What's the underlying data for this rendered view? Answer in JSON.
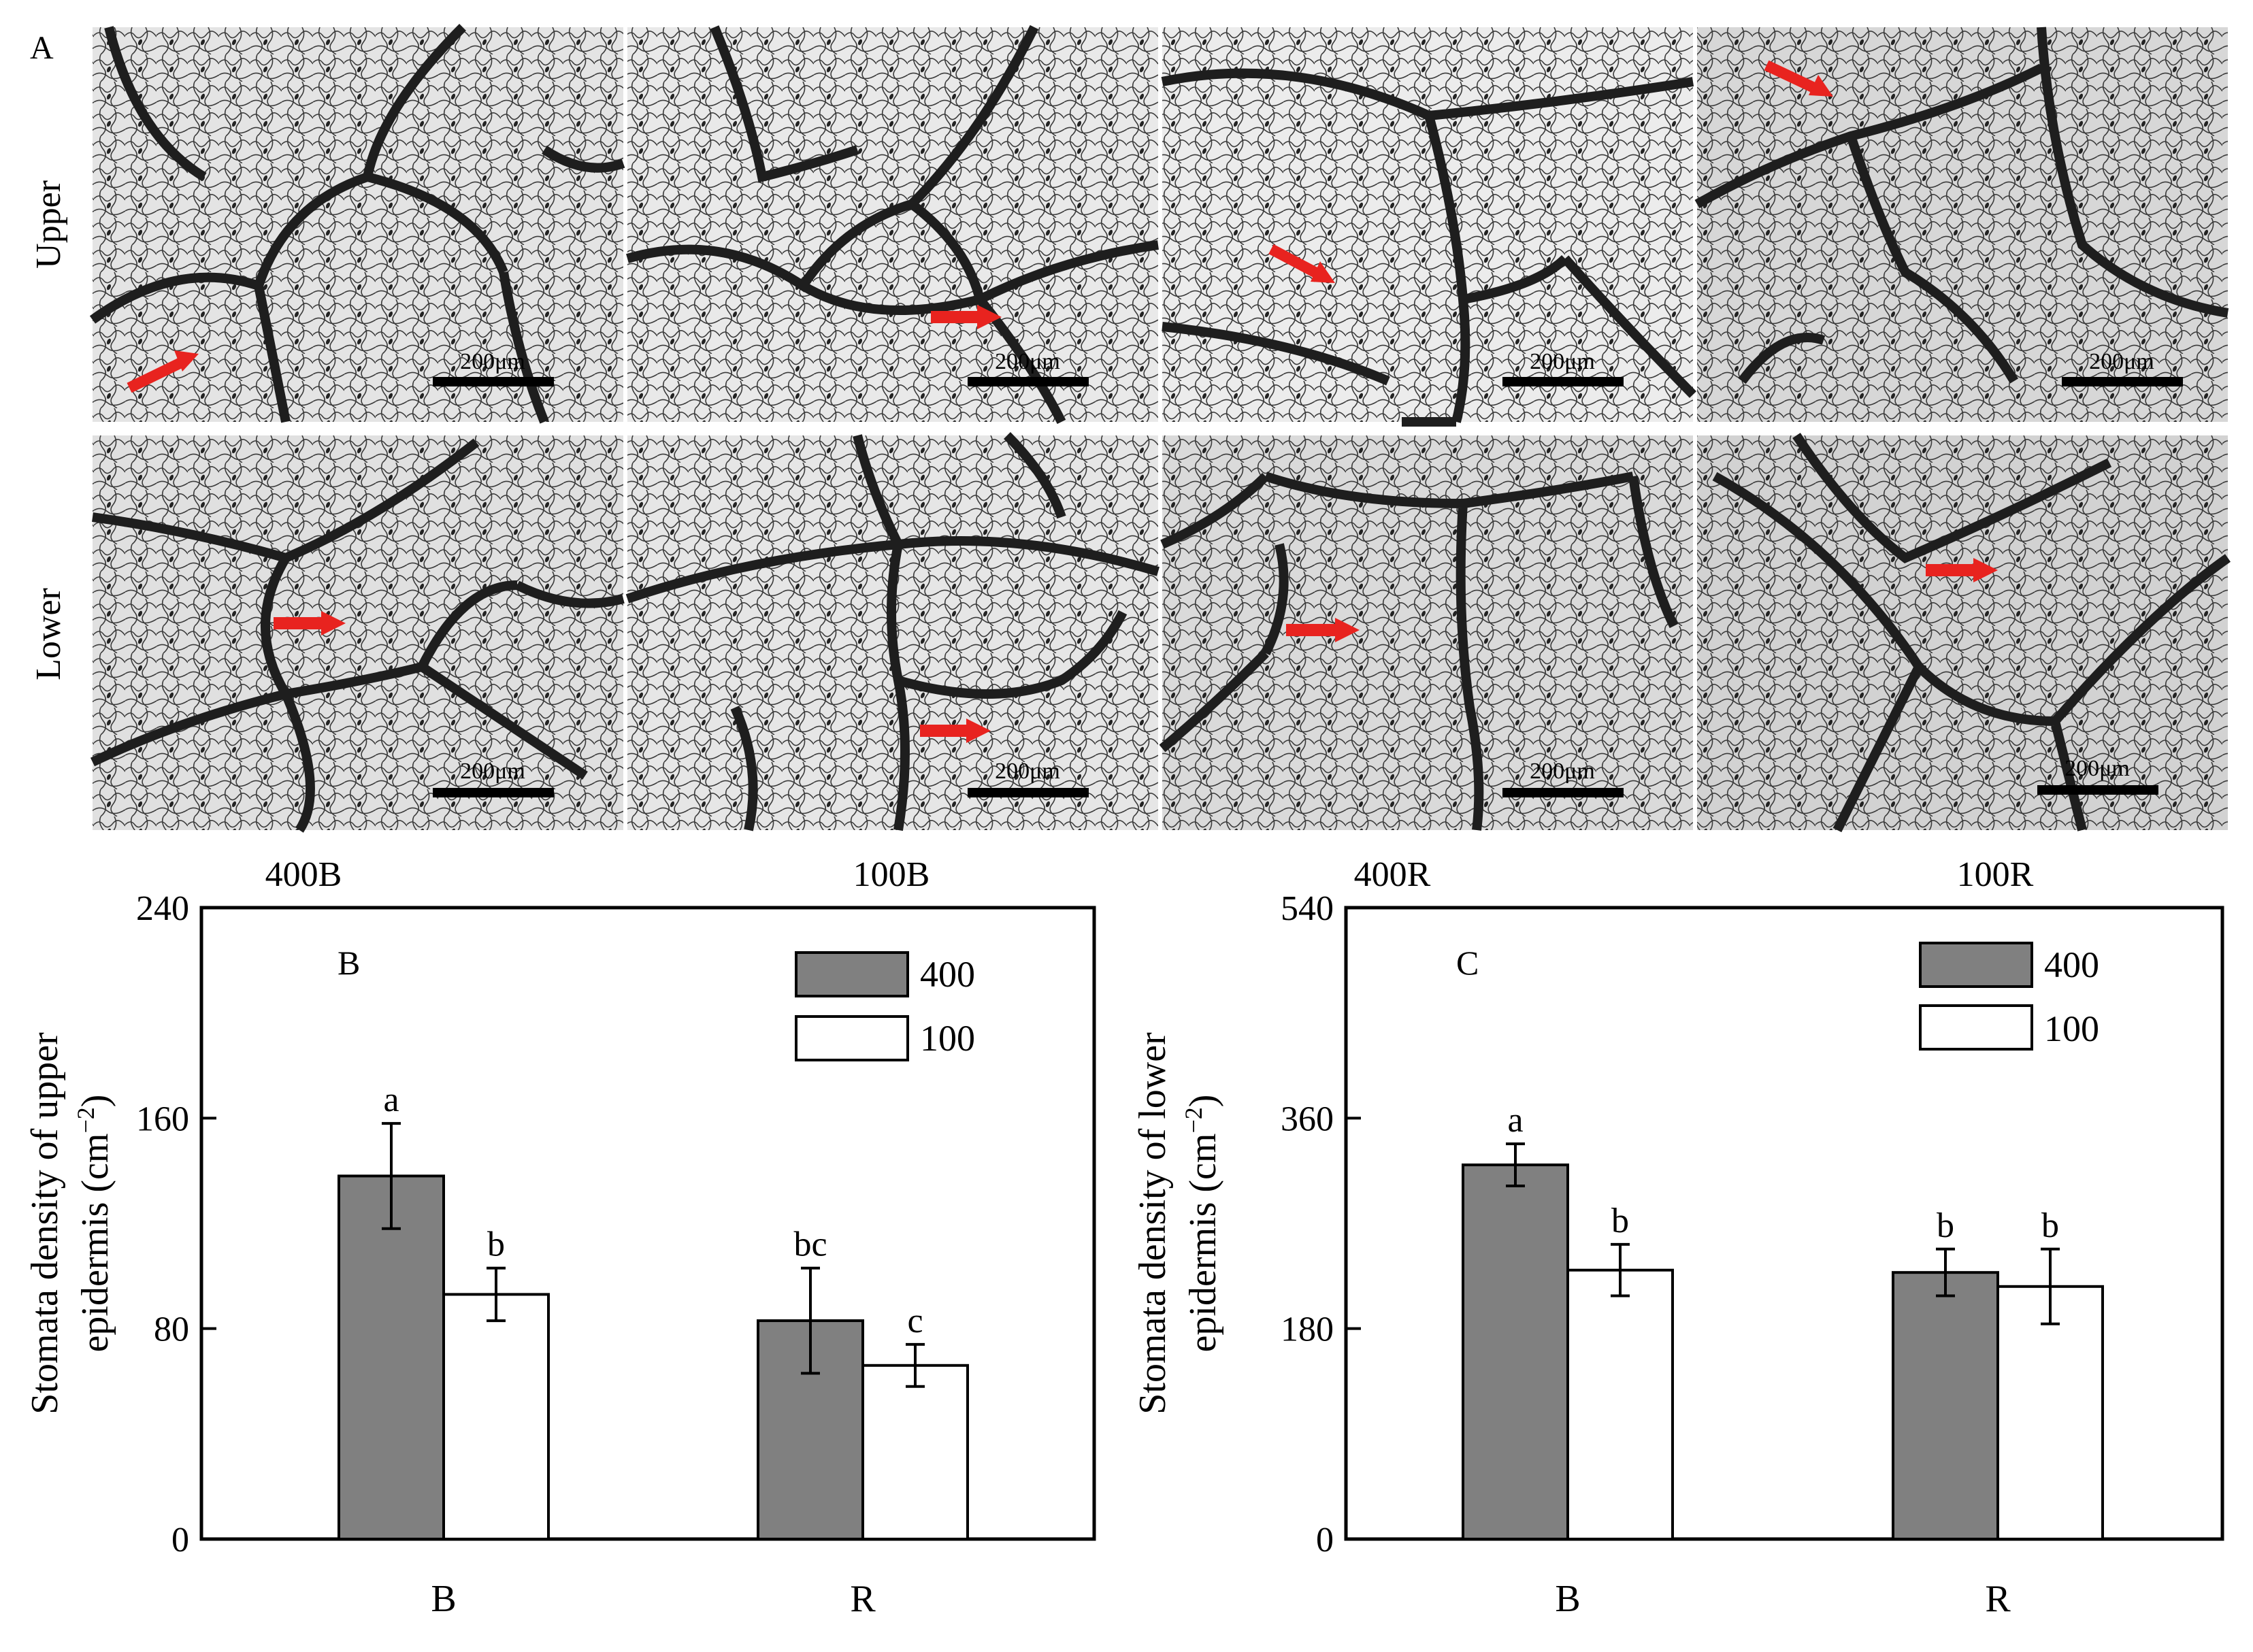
{
  "panel_a": {
    "label": "A",
    "row_labels": [
      "Upper",
      "Lower"
    ],
    "column_labels": [
      "400B",
      "100B",
      "400R",
      "100R"
    ],
    "scale_bar_text": "200μm",
    "arrow_color": "#e8231f"
  },
  "chart_data": [
    {
      "panel": "B",
      "type": "bar",
      "categories": [
        "B",
        "R"
      ],
      "series": [
        {
          "name": "400",
          "values": [
            138,
            83
          ],
          "errors": [
            20,
            20
          ],
          "sig": [
            "a",
            "bc"
          ],
          "color": "#808080"
        },
        {
          "name": "100",
          "values": [
            93,
            66
          ],
          "errors": [
            10,
            8
          ],
          "sig": [
            "b",
            "c"
          ],
          "color": "#ffffff"
        }
      ],
      "xlabel": "",
      "ylabel_line1": "Stomata density of upper",
      "ylabel_line2": "epidermis (cm",
      "ylabel_sup": "−2",
      "ylabel_close": ")",
      "ylim": [
        0,
        240
      ],
      "yticks": [
        0,
        80,
        160,
        240
      ],
      "legend_placement": "top-right",
      "grid": false
    },
    {
      "panel": "C",
      "type": "bar",
      "categories": [
        "B",
        "R"
      ],
      "series": [
        {
          "name": "400",
          "values": [
            320,
            228
          ],
          "errors": [
            18,
            20
          ],
          "sig": [
            "a",
            "b"
          ],
          "color": "#808080"
        },
        {
          "name": "100",
          "values": [
            230,
            216
          ],
          "errors": [
            22,
            32
          ],
          "sig": [
            "b",
            "b"
          ],
          "color": "#ffffff"
        }
      ],
      "xlabel": "",
      "ylabel_line1": "Stomata density of lower",
      "ylabel_line2": "epidermis (cm",
      "ylabel_sup": "−2",
      "ylabel_close": ")",
      "ylim": [
        0,
        540
      ],
      "yticks": [
        0,
        180,
        360,
        540
      ],
      "legend_placement": "top-right",
      "grid": false
    }
  ]
}
